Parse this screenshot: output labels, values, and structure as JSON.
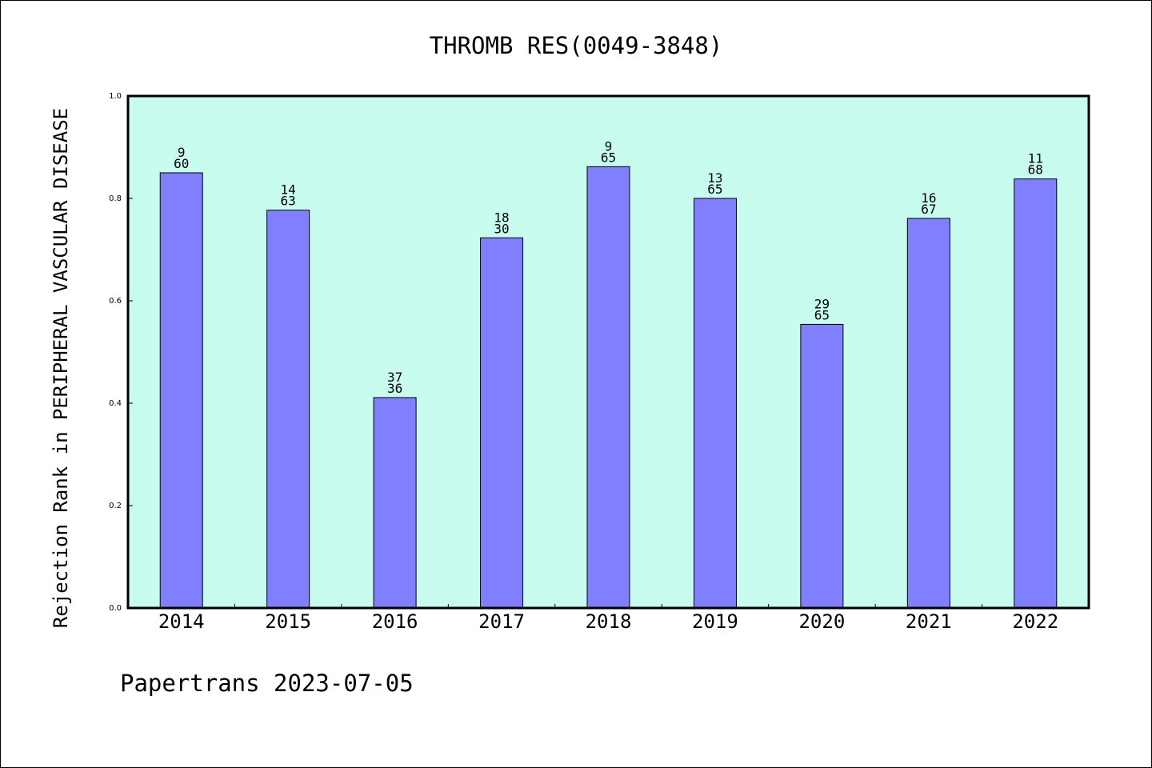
{
  "chart_data": {
    "type": "bar",
    "title": "THROMB RES(0049-3848)",
    "ylabel": "Rejection Rank in PERIPHERAL VASCULAR DISEASE",
    "xlabel": "",
    "categories": [
      "2014",
      "2015",
      "2016",
      "2017",
      "2018",
      "2019",
      "2020",
      "2021",
      "2022"
    ],
    "values": [
      0.85,
      0.777,
      0.411,
      0.723,
      0.862,
      0.8,
      0.554,
      0.761,
      0.838
    ],
    "bar_labels": [
      {
        "top": "9",
        "bottom": "60"
      },
      {
        "top": "14",
        "bottom": "63"
      },
      {
        "top": "37",
        "bottom": "36"
      },
      {
        "top": "18",
        "bottom": "30"
      },
      {
        "top": "9",
        "bottom": "65"
      },
      {
        "top": "13",
        "bottom": "65"
      },
      {
        "top": "29",
        "bottom": "65"
      },
      {
        "top": "16",
        "bottom": "67"
      },
      {
        "top": "11",
        "bottom": "68"
      }
    ],
    "ylim": [
      0,
      1.0
    ],
    "yticks": [
      "0.0",
      "0.2",
      "0.4",
      "0.6",
      "0.8",
      "1.0"
    ],
    "grid": false,
    "colors": {
      "plot_background": "#c8fcee",
      "bar_fill": "#8080ff",
      "bar_stroke": "#000000"
    }
  },
  "footer": "Papertrans 2023-07-05"
}
